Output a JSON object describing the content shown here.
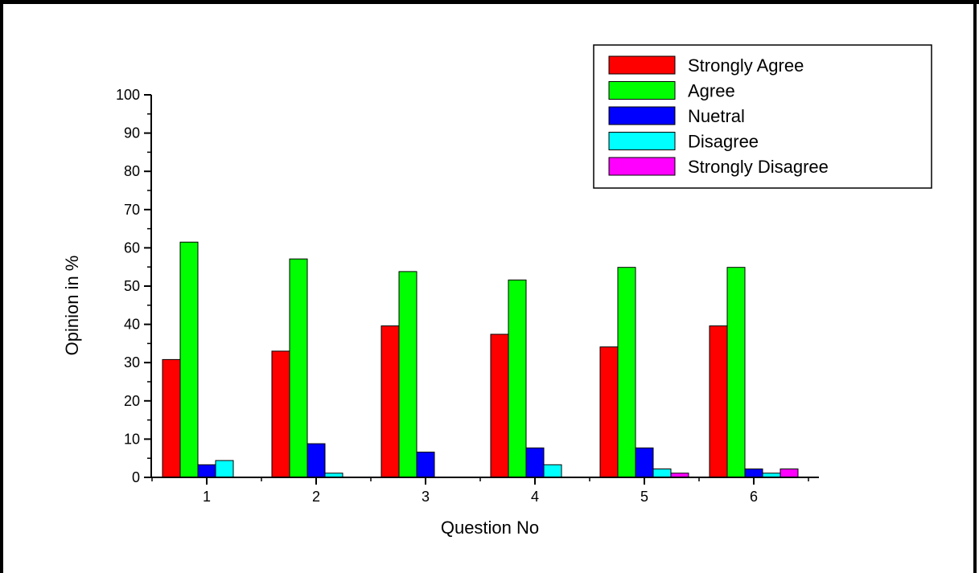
{
  "chart_data": {
    "type": "bar",
    "title": "",
    "xlabel": "Question No",
    "ylabel": "Opinion in %",
    "ylim": [
      0,
      100
    ],
    "yticks": [
      0,
      10,
      20,
      30,
      40,
      50,
      60,
      70,
      80,
      90,
      100
    ],
    "categories": [
      "1",
      "2",
      "3",
      "4",
      "5",
      "6"
    ],
    "legend_position": "top-right",
    "series": [
      {
        "name": "Strongly Agree",
        "color": "#ff0000",
        "values": [
          30.8,
          33.0,
          39.6,
          37.4,
          34.1,
          39.6
        ]
      },
      {
        "name": "Agree",
        "color": "#00ff00",
        "values": [
          61.5,
          57.1,
          53.8,
          51.6,
          54.9,
          54.9
        ]
      },
      {
        "name": "Nuetral",
        "color": "#0000ff",
        "values": [
          3.3,
          8.8,
          6.6,
          7.7,
          7.7,
          2.2
        ]
      },
      {
        "name": "Disagree",
        "color": "#00ffff",
        "values": [
          4.4,
          1.1,
          0,
          3.3,
          2.2,
          1.1
        ]
      },
      {
        "name": "Strongly Disagree",
        "color": "#ff00ff",
        "values": [
          0,
          0,
          0,
          0,
          1.1,
          2.2
        ]
      }
    ]
  }
}
